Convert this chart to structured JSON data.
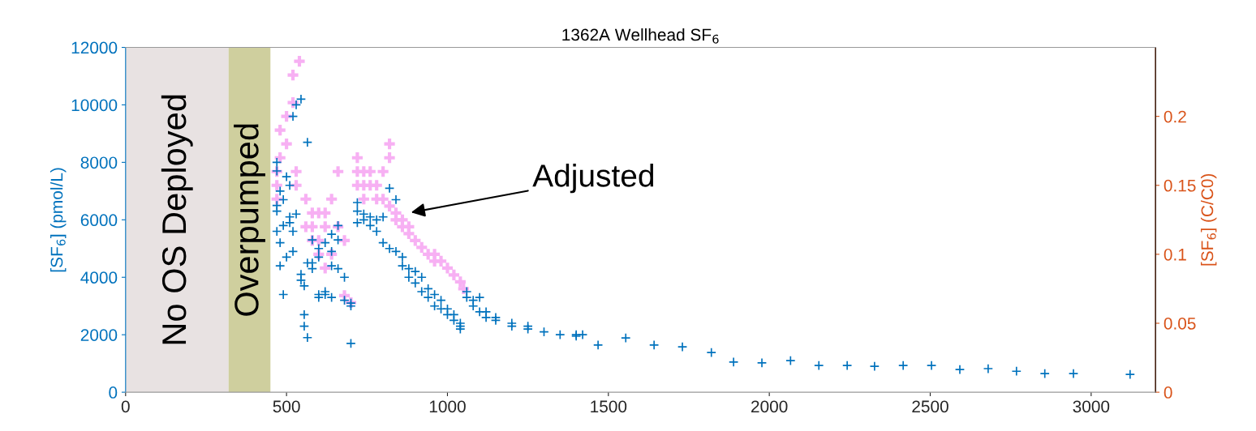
{
  "chart_data": {
    "type": "scatter",
    "title": "1362A Wellhead SF$_{6}$",
    "ylabel": "[SF$_{6}$] (pmol/L)",
    "y2label": "[SF$_{6}$] (C/C0)",
    "marker": "cross",
    "grid": false,
    "xlim": [
      0,
      3200
    ],
    "xticks": [
      0,
      500,
      1000,
      1500,
      2000,
      2500,
      3000
    ],
    "ylim": [
      0,
      12000
    ],
    "yticks": [
      0,
      2000,
      4000,
      6000,
      8000,
      10000,
      12000
    ],
    "y2lim": [
      0,
      0.25
    ],
    "y2ticks": [
      0,
      0.05,
      0.1,
      0.15,
      0.2
    ],
    "bands": [
      {
        "axis": "x",
        "from": 0,
        "to": 320,
        "label": "No OS Deployed",
        "color": "#e8e2e2"
      },
      {
        "axis": "x",
        "from": 320,
        "to": 450,
        "label": "Overpumped",
        "color": "#cfcf9e"
      }
    ],
    "annotations": [
      "Adjusted"
    ],
    "series": [
      {
        "color": "#0072bd",
        "x": [
          470,
          470,
          470,
          470,
          470,
          480,
          480,
          480,
          490,
          490,
          490,
          500,
          500,
          510,
          510,
          510,
          520,
          520,
          520,
          530,
          530,
          545,
          545,
          545,
          555,
          555,
          555,
          565,
          565,
          565,
          580,
          580,
          580,
          600,
          600,
          600,
          600,
          620,
          620,
          620,
          640,
          640,
          640,
          640,
          660,
          660,
          660,
          680,
          680,
          700,
          700,
          700,
          720,
          720,
          720,
          740,
          740,
          760,
          760,
          780,
          780,
          800,
          800,
          820,
          820,
          840,
          840,
          860,
          860,
          880,
          880,
          900,
          900,
          920,
          920,
          940,
          940,
          960,
          960,
          980,
          980,
          1000,
          1000,
          1020,
          1020,
          1040,
          1040,
          1040,
          1060,
          1060,
          1080,
          1080,
          1100,
          1100,
          1120,
          1120,
          1150,
          1150,
          1200,
          1200,
          1250,
          1250,
          1300,
          1350,
          1400,
          1400,
          1420,
          1468,
          1554,
          1642,
          1730,
          1820,
          1889,
          1977,
          2066,
          2154,
          2242,
          2327,
          2416,
          2504,
          2592,
          2680,
          2768,
          2856,
          2945,
          3121
        ],
        "values": [
          8000,
          7700,
          6500,
          6300,
          5600,
          7000,
          5200,
          4400,
          5800,
          3400,
          6700,
          7500,
          4700,
          7200,
          6100,
          5900,
          9600,
          5600,
          4900,
          10000,
          6200,
          10200,
          4100,
          3900,
          3700,
          2700,
          2300,
          8700,
          1900,
          4500,
          4500,
          4300,
          5300,
          5000,
          4700,
          3400,
          3300,
          5200,
          3500,
          3400,
          5500,
          4900,
          3300,
          4400,
          5300,
          5800,
          4300,
          4000,
          3200,
          3100,
          1700,
          3000,
          6300,
          5900,
          6600,
          6200,
          6000,
          6100,
          5800,
          6000,
          5600,
          6100,
          5200,
          7100,
          5000,
          6700,
          4900,
          4700,
          4400,
          4300,
          4000,
          4200,
          3800,
          4000,
          3500,
          3600,
          3300,
          3400,
          3000,
          3200,
          2900,
          2900,
          2700,
          2700,
          2500,
          2400,
          2300,
          2200,
          3500,
          3300,
          3200,
          3000,
          3300,
          2800,
          2800,
          2600,
          2500,
          2600,
          2400,
          2300,
          2200,
          2300,
          2100,
          2000,
          2000,
          1950,
          2000,
          1640,
          1890,
          1640,
          1580,
          1380,
          1050,
          1020,
          1100,
          930,
          930,
          900,
          930,
          930,
          790,
          820,
          730,
          650,
          650,
          620
        ]
      },
      {
        "color": "#f7b0f3",
        "axis": "y2",
        "x": [
          470,
          470,
          470,
          480,
          480,
          500,
          500,
          520,
          520,
          540,
          530,
          530,
          560,
          560,
          580,
          580,
          580,
          600,
          600,
          600,
          620,
          620,
          620,
          640,
          640,
          660,
          660,
          680,
          680,
          700,
          720,
          720,
          720,
          740,
          740,
          740,
          760,
          760,
          780,
          780,
          800,
          800,
          820,
          820,
          820,
          840,
          840,
          860,
          860,
          880,
          880,
          900,
          920,
          940,
          960,
          960,
          980,
          1000,
          1020,
          1040,
          1050
        ],
        "values": [
          0.16,
          0.15,
          0.14,
          0.19,
          0.17,
          0.2,
          0.18,
          0.23,
          0.21,
          0.24,
          0.16,
          0.15,
          0.14,
          0.12,
          0.11,
          0.12,
          0.13,
          0.11,
          0.1,
          0.13,
          0.09,
          0.12,
          0.13,
          0.1,
          0.14,
          0.16,
          0.12,
          0.11,
          0.07,
          0.065,
          0.17,
          0.16,
          0.15,
          0.16,
          0.15,
          0.14,
          0.16,
          0.15,
          0.15,
          0.14,
          0.16,
          0.14,
          0.18,
          0.17,
          0.135,
          0.13,
          0.125,
          0.125,
          0.12,
          0.12,
          0.115,
          0.11,
          0.105,
          0.1,
          0.1,
          0.095,
          0.095,
          0.09,
          0.085,
          0.08,
          0.075
        ]
      }
    ]
  }
}
